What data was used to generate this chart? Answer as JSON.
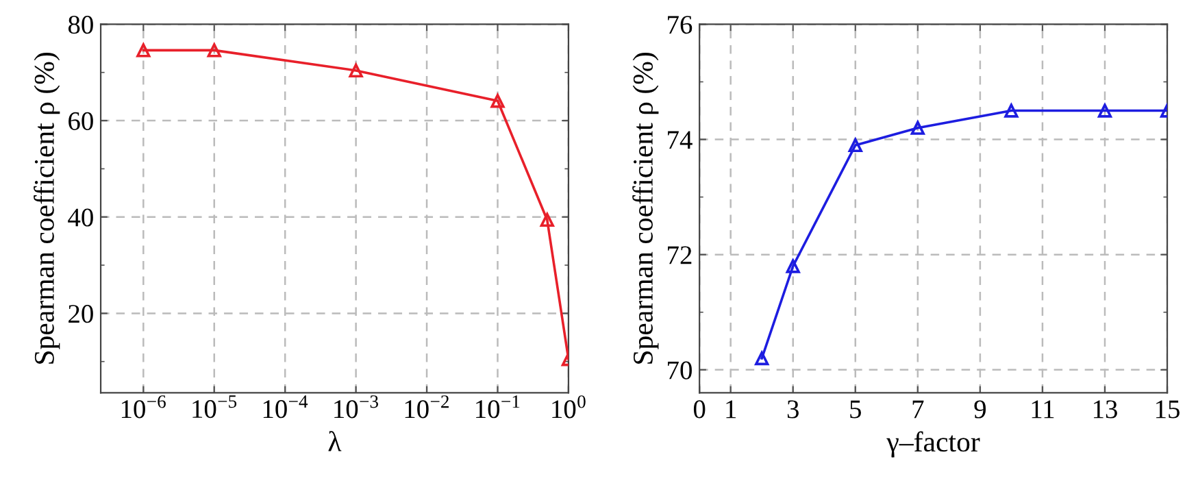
{
  "chart_data": [
    {
      "type": "line",
      "xlabel": "λ",
      "ylabel": "Spearman coefficient ρ (%)",
      "log": "x",
      "x": [
        1e-06,
        1e-05,
        0.001,
        0.1,
        0.5,
        1
      ],
      "series": [
        {
          "color": "#e8202a",
          "values": [
            74.6,
            74.6,
            70.4,
            64.1,
            39.4,
            10.5
          ]
        }
      ],
      "xlim": [
        2.5e-07,
        1
      ],
      "xticks": [
        {
          "value": 1e-06,
          "label": "10$^{−6}$"
        },
        {
          "value": 1e-05,
          "label": "10$^{−5}$"
        },
        {
          "value": 0.0001,
          "label": "10$^{−4}$"
        },
        {
          "value": 0.001,
          "label": "10$^{−3}$"
        },
        {
          "value": 0.01,
          "label": "10$^{−2}$"
        },
        {
          "value": 0.1,
          "label": "10$^{−1}$"
        },
        {
          "value": 1,
          "label": "10$^{0}$"
        }
      ],
      "ylim": [
        3.5,
        80
      ],
      "yticks": [
        20,
        40,
        60,
        80
      ],
      "grid": true,
      "marker": "triangle",
      "line_style": "solid"
    },
    {
      "type": "line",
      "xlabel": "γ–factor",
      "ylabel": "Spearman coefficient ρ (%)",
      "x": [
        2,
        3,
        5,
        7,
        10,
        13,
        15
      ],
      "series": [
        {
          "color": "#1d1de0",
          "values": [
            70.2,
            71.8,
            73.9,
            74.2,
            74.5,
            74.5,
            74.5
          ]
        }
      ],
      "xlim": [
        0,
        15
      ],
      "xticks": [
        0,
        1,
        3,
        5,
        7,
        9,
        11,
        13,
        15
      ],
      "ylim": [
        69.6,
        76
      ],
      "yticks": [
        70,
        72,
        74,
        76
      ],
      "grid": true,
      "marker": "triangle",
      "line_style": "solid"
    }
  ]
}
